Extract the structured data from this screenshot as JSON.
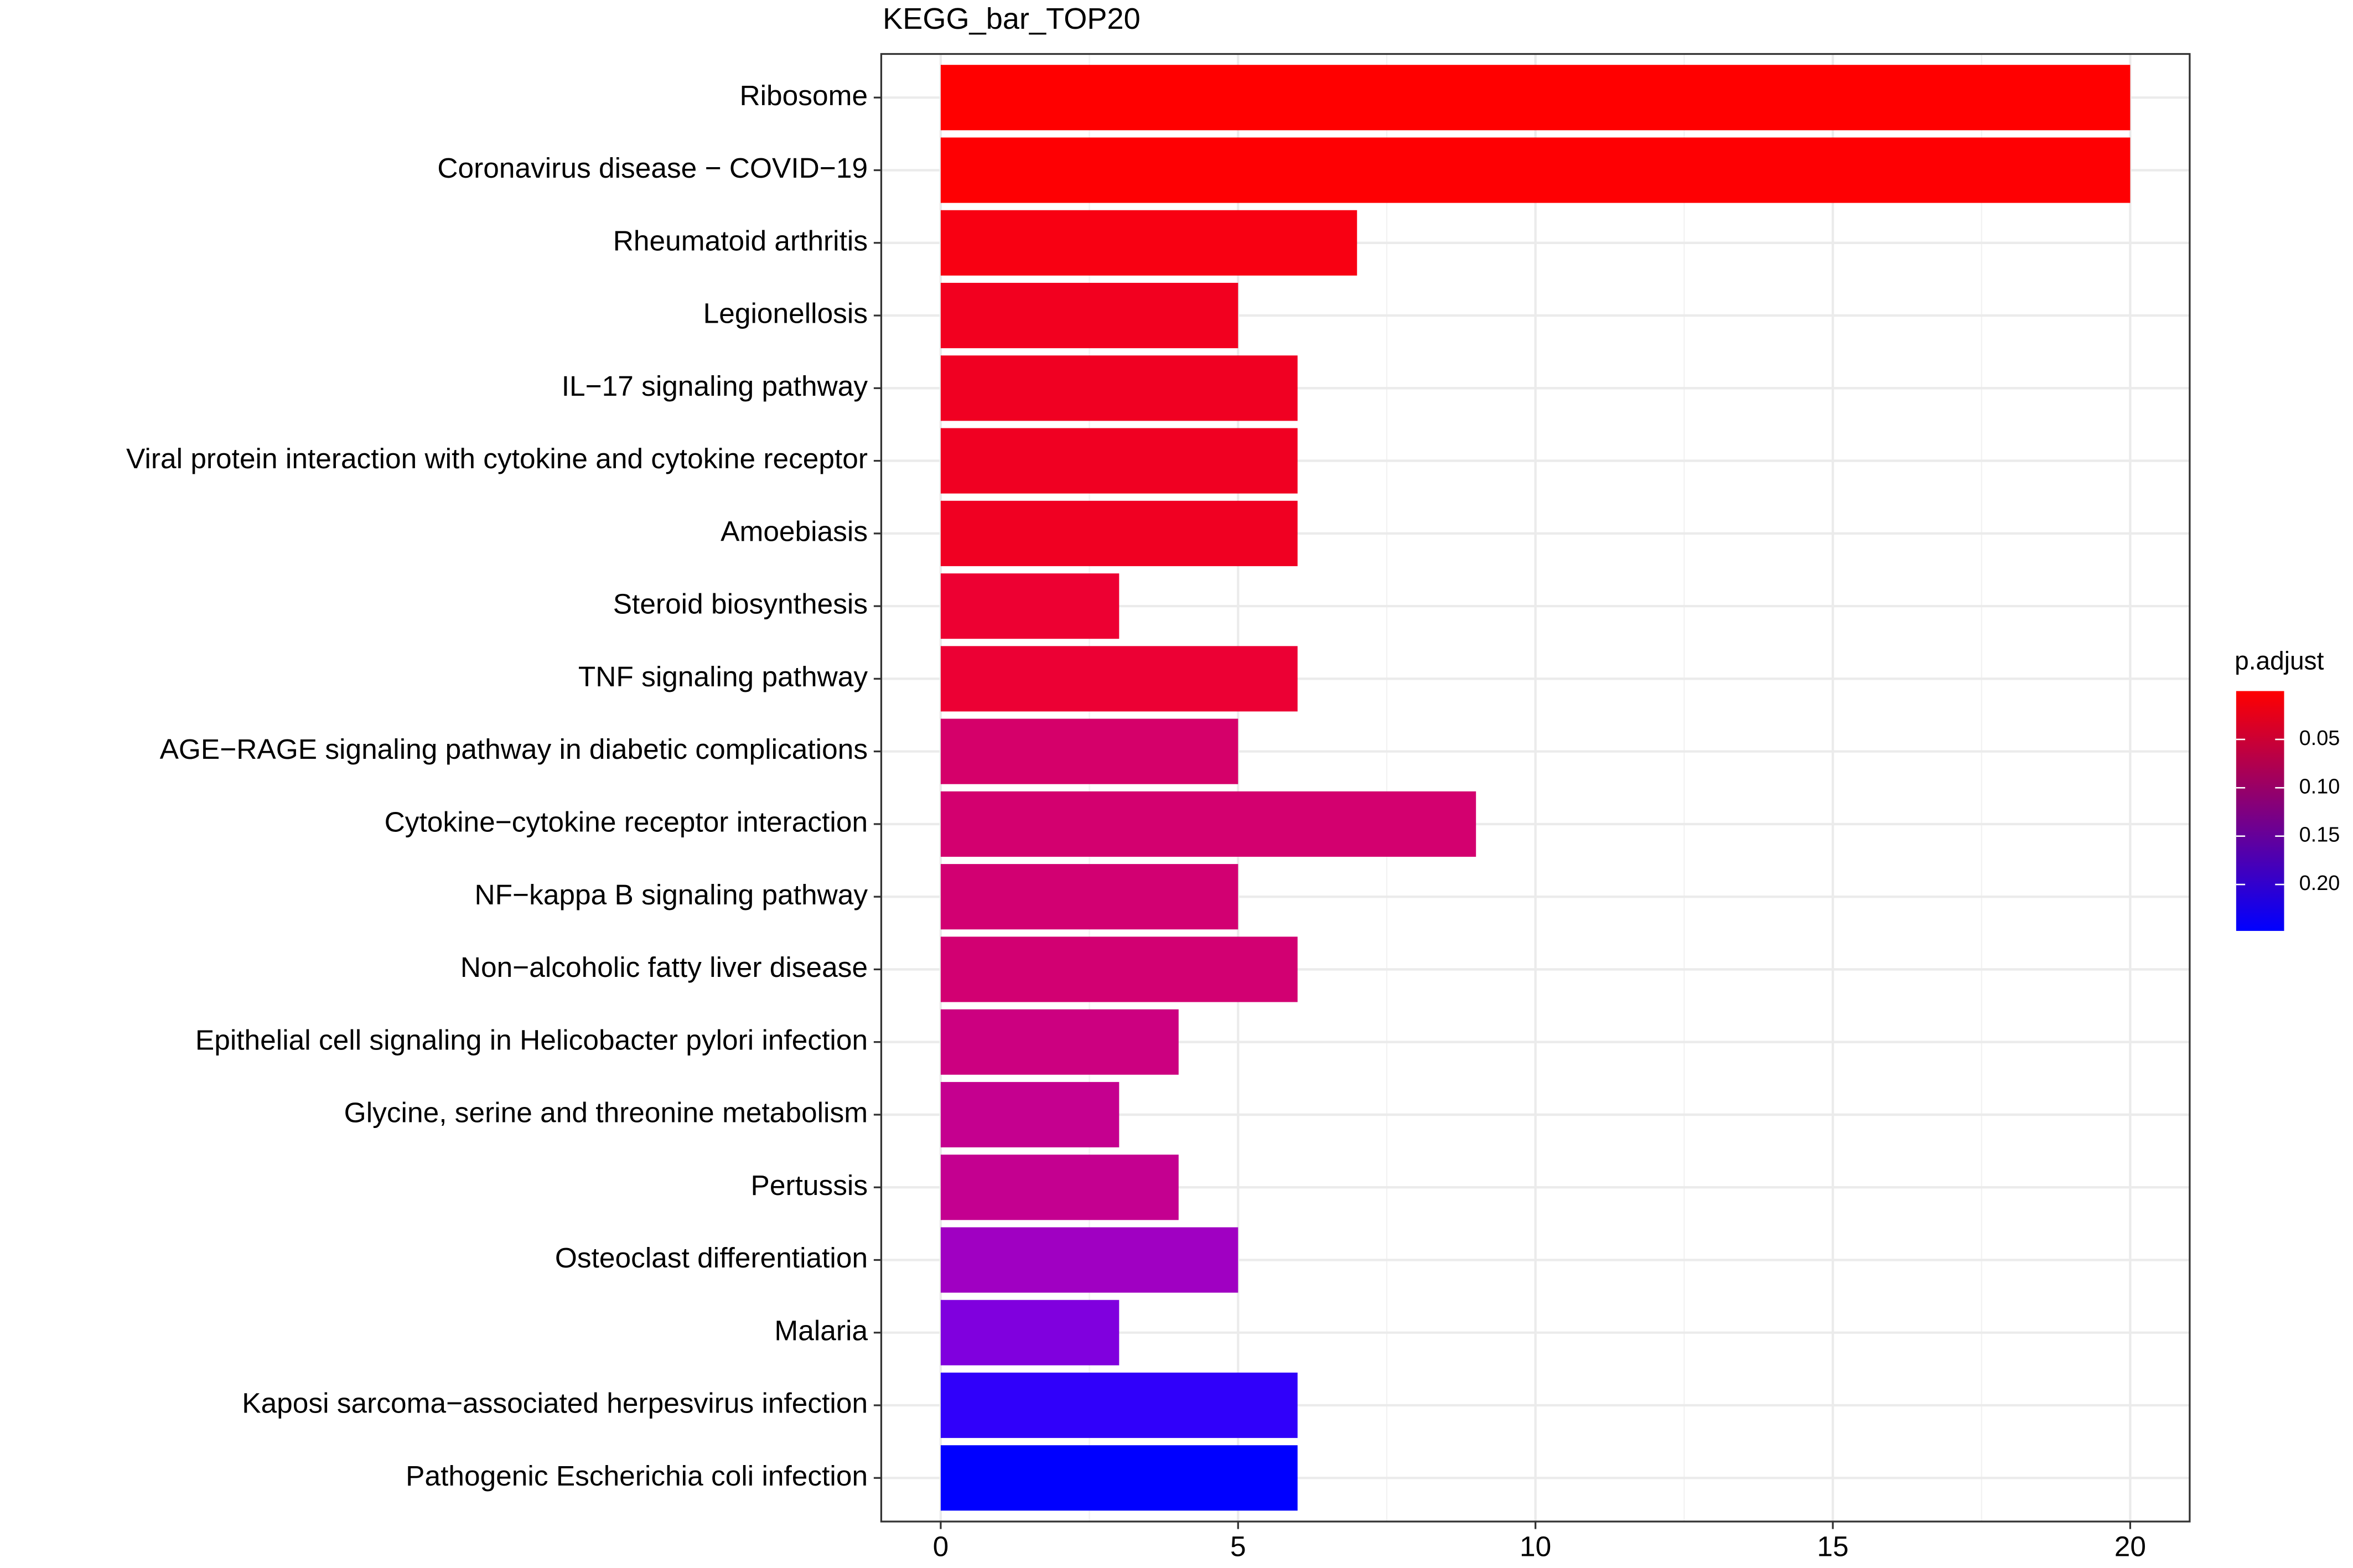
{
  "chart_data": {
    "type": "barh",
    "title": "KEGG_bar_TOP20",
    "categories": [
      "Ribosome",
      "Coronavirus disease − COVID−19",
      "Rheumatoid arthritis",
      "Legionellosis",
      "IL−17 signaling pathway",
      "Viral protein interaction with cytokine and cytokine receptor",
      "Amoebiasis",
      "Steroid biosynthesis",
      "TNF signaling pathway",
      "AGE−RAGE signaling pathway in diabetic complications",
      "Cytokine−cytokine receptor interaction",
      "NF−kappa B signaling pathway",
      "Non−alcoholic fatty liver disease",
      "Epithelial cell signaling in Helicobacter pylori infection",
      "Glycine, serine and threonine metabolism",
      "Pertussis",
      "Osteoclast differentiation",
      "Malaria",
      "Kaposi sarcoma−associated herpesvirus infection",
      "Pathogenic Escherichia coli infection"
    ],
    "values": [
      20,
      20,
      7,
      5,
      6,
      6,
      6,
      3,
      6,
      5,
      9,
      5,
      6,
      4,
      3,
      4,
      5,
      3,
      6,
      6
    ],
    "colors": [
      "#ff0000",
      "#fe0003",
      "#f80012",
      "#f2001f",
      "#f00022",
      "#f00022",
      "#f00022",
      "#ed0032",
      "#ec0034",
      "#d5006a",
      "#d3006f",
      "#d20072",
      "#d20072",
      "#cc0080",
      "#c5008f",
      "#c40090",
      "#a000c2",
      "#8000de",
      "#3000fa",
      "#0000ff"
    ],
    "xlim": [
      -1.0,
      21.0
    ],
    "xticks": [
      0,
      5,
      10,
      15,
      20
    ],
    "grid": true,
    "colorbar": {
      "title": "p.adjust",
      "lim": [
        0.0,
        0.248
      ],
      "low_color": "#ff0000",
      "high_color": "#0000ff",
      "ticks": [
        {
          "value": 0.05,
          "label": "0.05"
        },
        {
          "value": 0.1,
          "label": "0.10"
        },
        {
          "value": 0.15,
          "label": "0.15"
        },
        {
          "value": 0.2,
          "label": "0.20"
        }
      ]
    }
  }
}
